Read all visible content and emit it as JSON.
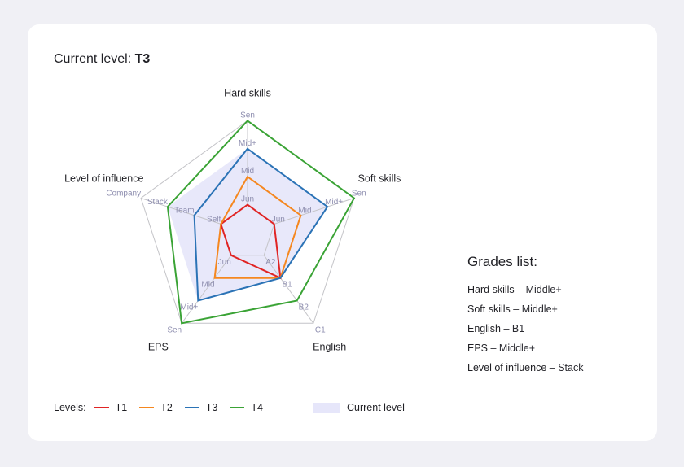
{
  "header": {
    "current_level_label": "Current level:",
    "current_level_value": "T3"
  },
  "chart_data": {
    "type": "radar",
    "axes": [
      {
        "name": "Hard skills",
        "scale": [
          "Jun",
          "Mid",
          "Mid+",
          "Sen"
        ]
      },
      {
        "name": "Soft skills",
        "scale": [
          "Jun",
          "Mid",
          "Mid+",
          "Sen"
        ]
      },
      {
        "name": "English",
        "scale": [
          "A2",
          "B1",
          "B2",
          "C1"
        ]
      },
      {
        "name": "EPS",
        "scale": [
          "Jun",
          "Mid",
          "Mid+",
          "Sen"
        ]
      },
      {
        "name": "Level of influence",
        "scale": [
          "Self",
          "Team",
          "Stack",
          "Company"
        ]
      }
    ],
    "series": [
      {
        "name": "T1",
        "color": "#e02424",
        "values": [
          "Jun",
          "Jun",
          "B1",
          "Jun",
          "Self"
        ]
      },
      {
        "name": "T2",
        "color": "#f5871f",
        "values": [
          "Mid",
          "Mid",
          "B1",
          "Mid",
          "Self"
        ]
      },
      {
        "name": "T3",
        "color": "#2b73b6",
        "values": [
          "Mid+",
          "Mid+",
          "B1",
          "Mid+",
          "Team"
        ]
      },
      {
        "name": "T4",
        "color": "#3aa335",
        "values": [
          "Sen",
          "Sen",
          "B2",
          "Sen",
          "Stack"
        ]
      }
    ],
    "current": {
      "name": "Current level",
      "color": "#e6e6fa",
      "values": [
        "Mid+",
        "Mid+",
        "B1",
        "Mid+",
        "Stack"
      ]
    },
    "legend_title": "Levels:"
  },
  "grades": {
    "title": "Grades list:",
    "items": [
      {
        "label": "Hard skills",
        "value": "Middle+"
      },
      {
        "label": "Soft skills",
        "value": "Middle+"
      },
      {
        "label": "English",
        "value": "B1"
      },
      {
        "label": "EPS",
        "value": "Middle+"
      },
      {
        "label": "Level of influence",
        "value": "Stack"
      }
    ]
  }
}
